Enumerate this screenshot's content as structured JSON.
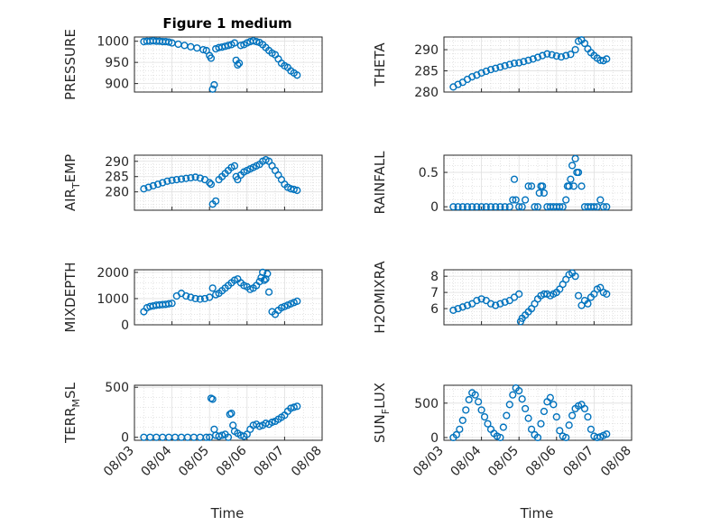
{
  "figure": {
    "title": "Figure 1 medium",
    "x_label": "Time"
  },
  "colors": {
    "marker": "#0072BD",
    "axes": "#262626",
    "grid": "#dfdfdf"
  },
  "chart_data": [
    {
      "type": "scatter",
      "ylabel": "PRESSURE",
      "ylabel_sub": "",
      "xlim": [
        "08/03",
        "08/08"
      ],
      "ylim": [
        880,
        1010
      ],
      "yticks": [
        900,
        950,
        1000
      ],
      "x": [
        "08/03 06:00",
        "08/03 08:00",
        "08/03 10:00",
        "08/03 12:00",
        "08/03 14:00",
        "08/03 16:00",
        "08/03 18:00",
        "08/03 20:00",
        "08/03 22:00",
        "08/04 00:00",
        "08/04 04:00",
        "08/04 08:00",
        "08/04 12:00",
        "08/04 16:00",
        "08/04 20:00",
        "08/04 22:00",
        "08/05 00:00",
        "08/05 01:00",
        "08/05 02:00",
        "08/05 03:00",
        "08/05 04:00",
        "08/05 06:00",
        "08/05 08:00",
        "08/05 10:00",
        "08/05 12:00",
        "08/05 14:00",
        "08/05 16:00",
        "08/05 17:00",
        "08/05 18:00",
        "08/05 19:00",
        "08/05 20:00",
        "08/05 22:00",
        "08/06 00:00",
        "08/06 02:00",
        "08/06 04:00",
        "08/06 06:00",
        "08/06 08:00",
        "08/06 10:00",
        "08/06 12:00",
        "08/06 14:00",
        "08/06 16:00",
        "08/06 18:00",
        "08/06 20:00",
        "08/06 22:00",
        "08/07 00:00",
        "08/07 02:00",
        "08/07 04:00",
        "08/07 06:00",
        "08/07 08:00"
      ],
      "y": [
        999,
        1000,
        1000,
        1001,
        1000,
        1000,
        999,
        999,
        998,
        996,
        993,
        990,
        987,
        984,
        980,
        978,
        966,
        960,
        887,
        897,
        982,
        985,
        986,
        988,
        990,
        992,
        996,
        955,
        944,
        948,
        990,
        992,
        996,
        999,
        1001,
        999,
        997,
        992,
        985,
        978,
        972,
        968,
        958,
        948,
        942,
        938,
        930,
        925,
        920
      ]
    },
    {
      "type": "scatter",
      "ylabel": "THETA",
      "ylabel_sub": "",
      "xlim": [
        "08/03",
        "08/08"
      ],
      "ylim": [
        280,
        293
      ],
      "yticks": [
        280,
        285,
        290
      ],
      "x": [
        "08/03 06:00",
        "08/03 09:00",
        "08/03 12:00",
        "08/03 15:00",
        "08/03 18:00",
        "08/03 21:00",
        "08/04 00:00",
        "08/04 03:00",
        "08/04 06:00",
        "08/04 09:00",
        "08/04 12:00",
        "08/04 15:00",
        "08/04 18:00",
        "08/04 21:00",
        "08/05 00:00",
        "08/05 03:00",
        "08/05 06:00",
        "08/05 09:00",
        "08/05 12:00",
        "08/05 15:00",
        "08/05 18:00",
        "08/05 21:00",
        "08/06 00:00",
        "08/06 03:00",
        "08/06 06:00",
        "08/06 09:00",
        "08/06 12:00",
        "08/06 14:00",
        "08/06 16:00",
        "08/06 18:00",
        "08/06 20:00",
        "08/06 22:00",
        "08/07 00:00",
        "08/07 02:00",
        "08/07 04:00",
        "08/07 06:00",
        "08/07 08:00"
      ],
      "y": [
        281.2,
        281.8,
        282.3,
        283.0,
        283.6,
        284.0,
        284.5,
        284.9,
        285.3,
        285.6,
        285.9,
        286.2,
        286.5,
        286.8,
        286.9,
        287.2,
        287.5,
        287.8,
        288.2,
        288.6,
        289.0,
        288.8,
        288.5,
        288.3,
        288.6,
        288.9,
        290.0,
        292.0,
        292.3,
        291.5,
        290.2,
        289.3,
        288.6,
        288.0,
        287.5,
        287.4,
        287.8
      ]
    },
    {
      "type": "scatter",
      "ylabel": "AIR",
      "ylabel_sub": "T",
      "ylabel_suffix": "EMP",
      "xlim": [
        "08/03",
        "08/08"
      ],
      "ylim": [
        274,
        292
      ],
      "yticks": [
        280,
        285,
        290
      ],
      "x": [
        "08/03 06:00",
        "08/03 09:00",
        "08/03 12:00",
        "08/03 15:00",
        "08/03 18:00",
        "08/03 21:00",
        "08/04 00:00",
        "08/04 03:00",
        "08/04 06:00",
        "08/04 09:00",
        "08/04 12:00",
        "08/04 15:00",
        "08/04 18:00",
        "08/04 21:00",
        "08/05 00:00",
        "08/05 01:00",
        "08/05 02:00",
        "08/05 04:00",
        "08/05 06:00",
        "08/05 08:00",
        "08/05 10:00",
        "08/05 12:00",
        "08/05 14:00",
        "08/05 16:00",
        "08/05 17:00",
        "08/05 18:00",
        "08/05 20:00",
        "08/05 22:00",
        "08/06 00:00",
        "08/06 02:00",
        "08/06 04:00",
        "08/06 06:00",
        "08/06 08:00",
        "08/06 10:00",
        "08/06 12:00",
        "08/06 14:00",
        "08/06 16:00",
        "08/06 18:00",
        "08/06 20:00",
        "08/06 22:00",
        "08/07 00:00",
        "08/07 02:00",
        "08/07 04:00",
        "08/07 06:00",
        "08/07 08:00"
      ],
      "y": [
        281.0,
        281.5,
        282.0,
        282.5,
        283.0,
        283.5,
        283.8,
        284.0,
        284.2,
        284.4,
        284.6,
        284.8,
        284.5,
        284.0,
        283.0,
        282.5,
        276.0,
        277.0,
        284.0,
        285.0,
        286.0,
        287.0,
        288.0,
        288.5,
        285.0,
        284.0,
        285.5,
        286.5,
        287.0,
        287.5,
        288.0,
        288.5,
        289.0,
        290.0,
        290.5,
        290.0,
        288.5,
        287.0,
        285.5,
        284.0,
        282.5,
        281.5,
        281.0,
        280.8,
        280.5
      ]
    },
    {
      "type": "scatter",
      "ylabel": "RAINFALL",
      "ylabel_sub": "",
      "xlim": [
        "08/03",
        "08/08"
      ],
      "ylim": [
        -0.05,
        0.75
      ],
      "yticks": [
        0,
        0.5
      ],
      "x": [
        "08/03 06:00",
        "08/03 09:00",
        "08/03 12:00",
        "08/03 15:00",
        "08/03 18:00",
        "08/03 21:00",
        "08/04 00:00",
        "08/04 03:00",
        "08/04 06:00",
        "08/04 09:00",
        "08/04 12:00",
        "08/04 15:00",
        "08/04 18:00",
        "08/04 20:00",
        "08/04 21:00",
        "08/04 22:00",
        "08/05 00:00",
        "08/05 02:00",
        "08/05 04:00",
        "08/05 06:00",
        "08/05 08:00",
        "08/05 10:00",
        "08/05 12:00",
        "08/05 13:00",
        "08/05 14:00",
        "08/05 15:00",
        "08/05 16:00",
        "08/05 18:00",
        "08/05 20:00",
        "08/05 22:00",
        "08/06 00:00",
        "08/06 02:00",
        "08/06 04:00",
        "08/06 06:00",
        "08/06 07:00",
        "08/06 08:00",
        "08/06 09:00",
        "08/06 10:00",
        "08/06 11:00",
        "08/06 12:00",
        "08/06 13:00",
        "08/06 14:00",
        "08/06 16:00",
        "08/06 18:00",
        "08/06 20:00",
        "08/06 22:00",
        "08/07 00:00",
        "08/07 02:00",
        "08/07 04:00",
        "08/07 06:00",
        "08/07 08:00"
      ],
      "y": [
        0,
        0,
        0,
        0,
        0,
        0,
        0,
        0,
        0,
        0,
        0,
        0,
        0,
        0.1,
        0.4,
        0.1,
        0,
        0,
        0.1,
        0.3,
        0.3,
        0,
        0,
        0.2,
        0.3,
        0.3,
        0.2,
        0,
        0,
        0,
        0,
        0,
        0,
        0.1,
        0.3,
        0.3,
        0.4,
        0.6,
        0.3,
        0.7,
        0.5,
        0.5,
        0.3,
        0,
        0,
        0,
        0,
        0,
        0.1,
        0,
        0
      ]
    },
    {
      "type": "scatter",
      "ylabel": "MIXDEPTH",
      "ylabel_sub": "",
      "xlim": [
        "08/03",
        "08/08"
      ],
      "ylim": [
        0,
        2100
      ],
      "yticks": [
        0,
        1000,
        2000
      ],
      "x": [
        "08/03 06:00",
        "08/03 08:00",
        "08/03 10:00",
        "08/03 12:00",
        "08/03 14:00",
        "08/03 16:00",
        "08/03 18:00",
        "08/03 20:00",
        "08/03 22:00",
        "08/04 00:00",
        "08/04 03:00",
        "08/04 06:00",
        "08/04 09:00",
        "08/04 12:00",
        "08/04 15:00",
        "08/04 18:00",
        "08/04 21:00",
        "08/05 00:00",
        "08/05 02:00",
        "08/05 04:00",
        "08/05 06:00",
        "08/05 08:00",
        "08/05 10:00",
        "08/05 12:00",
        "08/05 14:00",
        "08/05 16:00",
        "08/05 18:00",
        "08/05 20:00",
        "08/05 22:00",
        "08/06 00:00",
        "08/06 02:00",
        "08/06 04:00",
        "08/06 06:00",
        "08/06 08:00",
        "08/06 09:00",
        "08/06 10:00",
        "08/06 11:00",
        "08/06 12:00",
        "08/06 13:00",
        "08/06 14:00",
        "08/06 16:00",
        "08/06 18:00",
        "08/06 20:00",
        "08/06 22:00",
        "08/07 00:00",
        "08/07 02:00",
        "08/07 04:00",
        "08/07 06:00",
        "08/07 08:00"
      ],
      "y": [
        500,
        650,
        700,
        720,
        750,
        760,
        770,
        780,
        800,
        820,
        1100,
        1200,
        1100,
        1050,
        1000,
        980,
        1000,
        1050,
        1400,
        1150,
        1200,
        1300,
        1400,
        1500,
        1600,
        1700,
        1750,
        1600,
        1500,
        1450,
        1350,
        1400,
        1500,
        1650,
        1800,
        2000,
        1700,
        1750,
        1950,
        1250,
        500,
        400,
        550,
        650,
        700,
        750,
        800,
        850,
        900
      ]
    },
    {
      "type": "scatter",
      "ylabel": "H2OMIXRA",
      "ylabel_sub": "",
      "xlim": [
        "08/03",
        "08/08"
      ],
      "ylim": [
        5.0,
        8.4
      ],
      "yticks": [
        6,
        7,
        8
      ],
      "x": [
        "08/03 06:00",
        "08/03 09:00",
        "08/03 12:00",
        "08/03 15:00",
        "08/03 18:00",
        "08/03 21:00",
        "08/04 00:00",
        "08/04 03:00",
        "08/04 06:00",
        "08/04 09:00",
        "08/04 12:00",
        "08/04 15:00",
        "08/04 18:00",
        "08/04 21:00",
        "08/05 00:00",
        "08/05 01:00",
        "08/05 02:00",
        "08/05 04:00",
        "08/05 06:00",
        "08/05 08:00",
        "08/05 10:00",
        "08/05 12:00",
        "08/05 14:00",
        "08/05 16:00",
        "08/05 18:00",
        "08/05 20:00",
        "08/05 22:00",
        "08/06 00:00",
        "08/06 02:00",
        "08/06 04:00",
        "08/06 06:00",
        "08/06 08:00",
        "08/06 10:00",
        "08/06 12:00",
        "08/06 14:00",
        "08/06 16:00",
        "08/06 18:00",
        "08/06 20:00",
        "08/06 22:00",
        "08/07 00:00",
        "08/07 02:00",
        "08/07 04:00",
        "08/07 06:00",
        "08/07 08:00"
      ],
      "y": [
        5.9,
        6.0,
        6.1,
        6.2,
        6.3,
        6.5,
        6.6,
        6.5,
        6.3,
        6.2,
        6.3,
        6.4,
        6.5,
        6.7,
        6.9,
        5.2,
        5.4,
        5.6,
        5.8,
        6.0,
        6.3,
        6.6,
        6.8,
        6.9,
        6.9,
        6.8,
        6.9,
        7.0,
        7.2,
        7.5,
        7.8,
        8.1,
        8.2,
        8.0,
        6.8,
        6.2,
        6.5,
        6.3,
        6.7,
        6.9,
        7.2,
        7.3,
        7.0,
        6.9
      ]
    },
    {
      "type": "scatter",
      "ylabel": "TERR",
      "ylabel_sub": "M",
      "ylabel_suffix": "SL",
      "xlim": [
        "08/03",
        "08/08"
      ],
      "ylim": [
        -30,
        520
      ],
      "yticks": [
        0,
        500
      ],
      "x": [
        "08/03 06:00",
        "08/03 10:00",
        "08/03 14:00",
        "08/03 18:00",
        "08/03 22:00",
        "08/04 02:00",
        "08/04 06:00",
        "08/04 10:00",
        "08/04 14:00",
        "08/04 18:00",
        "08/04 22:00",
        "08/05 00:00",
        "08/05 01:00",
        "08/05 02:00",
        "08/05 03:00",
        "08/05 04:00",
        "08/05 06:00",
        "08/05 08:00",
        "08/05 10:00",
        "08/05 12:00",
        "08/05 13:00",
        "08/05 14:00",
        "08/05 15:00",
        "08/05 16:00",
        "08/05 18:00",
        "08/05 20:00",
        "08/05 22:00",
        "08/06 00:00",
        "08/06 02:00",
        "08/06 04:00",
        "08/06 06:00",
        "08/06 08:00",
        "08/06 10:00",
        "08/06 12:00",
        "08/06 14:00",
        "08/06 16:00",
        "08/06 18:00",
        "08/06 20:00",
        "08/06 22:00",
        "08/07 00:00",
        "08/07 02:00",
        "08/07 04:00",
        "08/07 06:00",
        "08/07 08:00"
      ],
      "y": [
        0,
        0,
        0,
        0,
        0,
        0,
        0,
        0,
        0,
        0,
        0,
        0,
        390,
        380,
        80,
        20,
        10,
        20,
        30,
        0,
        230,
        240,
        120,
        60,
        40,
        20,
        10,
        30,
        80,
        120,
        130,
        110,
        120,
        140,
        130,
        150,
        160,
        180,
        200,
        220,
        260,
        290,
        300,
        310
      ]
    },
    {
      "type": "scatter",
      "ylabel": "SUN",
      "ylabel_sub": "F",
      "ylabel_suffix": "LUX",
      "xlim": [
        "08/03",
        "08/08"
      ],
      "ylim": [
        -40,
        760
      ],
      "yticks": [
        0,
        500
      ],
      "x": [
        "08/03 06:00",
        "08/03 08:00",
        "08/03 10:00",
        "08/03 12:00",
        "08/03 14:00",
        "08/03 16:00",
        "08/03 18:00",
        "08/03 20:00",
        "08/03 22:00",
        "08/04 00:00",
        "08/04 02:00",
        "08/04 04:00",
        "08/04 06:00",
        "08/04 08:00",
        "08/04 10:00",
        "08/04 12:00",
        "08/04 14:00",
        "08/04 16:00",
        "08/04 18:00",
        "08/04 20:00",
        "08/04 22:00",
        "08/05 00:00",
        "08/05 02:00",
        "08/05 04:00",
        "08/05 06:00",
        "08/05 08:00",
        "08/05 10:00",
        "08/05 12:00",
        "08/05 14:00",
        "08/05 16:00",
        "08/05 18:00",
        "08/05 20:00",
        "08/05 22:00",
        "08/06 00:00",
        "08/06 02:00",
        "08/06 04:00",
        "08/06 06:00",
        "08/06 08:00",
        "08/06 10:00",
        "08/06 12:00",
        "08/06 14:00",
        "08/06 16:00",
        "08/06 18:00",
        "08/06 20:00",
        "08/06 22:00",
        "08/07 00:00",
        "08/07 02:00",
        "08/07 04:00",
        "08/07 06:00",
        "08/07 08:00"
      ],
      "y": [
        0,
        40,
        120,
        250,
        400,
        550,
        650,
        620,
        520,
        400,
        300,
        200,
        120,
        60,
        20,
        0,
        150,
        320,
        480,
        620,
        720,
        680,
        560,
        420,
        280,
        120,
        40,
        0,
        200,
        380,
        520,
        580,
        480,
        300,
        100,
        20,
        0,
        180,
        320,
        420,
        460,
        480,
        420,
        300,
        120,
        20,
        0,
        10,
        30,
        50
      ]
    }
  ],
  "x_tick_labels": [
    "08/03",
    "08/04",
    "08/05",
    "08/06",
    "08/07",
    "08/08"
  ]
}
